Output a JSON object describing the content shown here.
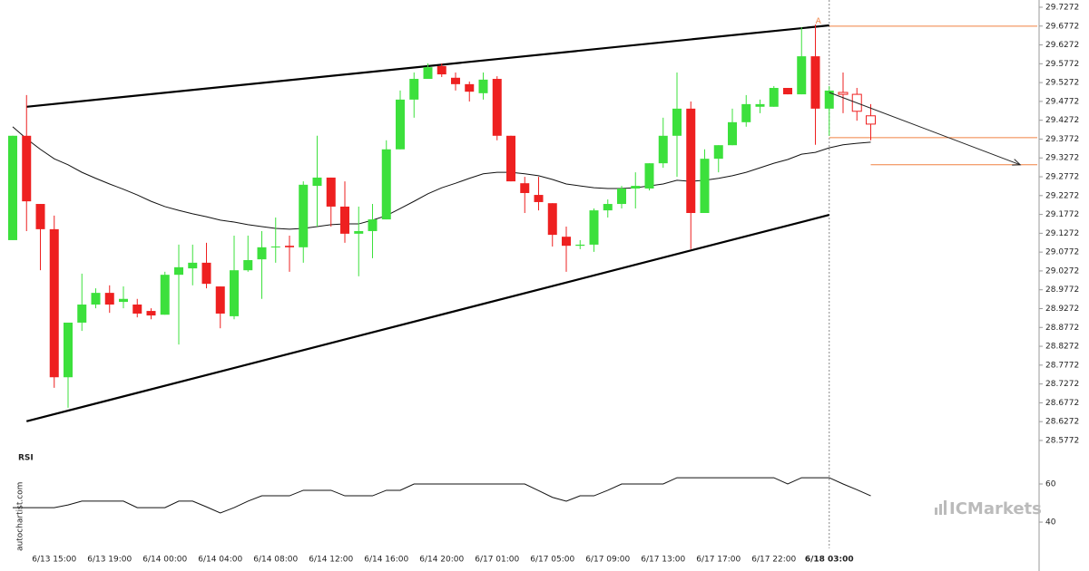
{
  "chart_data": {
    "type": "candlestick",
    "categories": [
      null,
      null,
      null,
      "6/13 15:00",
      null,
      null,
      null,
      "6/13 19:00",
      null,
      null,
      null,
      "6/14 00:00",
      null,
      null,
      null,
      "6/14 04:00",
      null,
      null,
      null,
      "6/14 08:00",
      null,
      null,
      null,
      "6/14 12:00",
      null,
      null,
      null,
      "6/14 16:00",
      null,
      null,
      null,
      "6/14 20:00",
      null,
      null,
      null,
      "6/17 01:00",
      null,
      null,
      null,
      "6/17 05:00",
      null,
      null,
      null,
      "6/17 09:00",
      null,
      null,
      null,
      "6/17 13:00",
      null,
      null,
      null,
      "6/17 17:00",
      null,
      null,
      null,
      "6/17 22:00",
      null,
      null,
      null,
      "6/18 03:00",
      null,
      null,
      null
    ],
    "open": [
      29.109,
      29.386,
      29.205,
      29.138,
      28.745,
      28.89,
      28.938,
      28.969,
      28.945,
      28.938,
      28.921,
      28.911,
      29.017,
      29.034,
      29.049,
      28.986,
      28.907,
      29.029,
      29.058,
      29.09,
      29.094,
      29.09,
      29.253,
      29.275,
      29.198,
      29.126,
      29.133,
      29.164,
      29.35,
      29.482,
      29.537,
      29.571,
      29.54,
      29.523,
      29.499,
      29.537,
      29.386,
      29.26,
      29.229,
      29.207,
      29.118,
      29.094,
      29.097,
      29.188,
      29.205,
      29.246,
      29.246,
      29.313,
      29.386,
      29.458,
      29.181,
      29.325,
      29.361,
      29.422,
      29.463,
      29.463,
      29.513,
      29.496,
      29.597,
      29.458,
      29.501,
      29.496,
      29.439
    ],
    "high": [
      29.386,
      29.494,
      29.205,
      29.174,
      28.89,
      29.02,
      28.981,
      28.989,
      28.986,
      28.953,
      28.928,
      29.025,
      29.097,
      29.097,
      29.102,
      28.986,
      29.121,
      29.121,
      29.133,
      29.169,
      29.121,
      29.265,
      29.386,
      29.275,
      29.265,
      29.198,
      29.205,
      29.374,
      29.506,
      29.554,
      29.578,
      29.578,
      29.554,
      29.53,
      29.554,
      29.544,
      29.386,
      29.277,
      29.277,
      29.207,
      29.145,
      29.109,
      29.193,
      29.217,
      29.253,
      29.289,
      29.313,
      29.434,
      29.554,
      29.477,
      29.35,
      29.361,
      29.458,
      29.494,
      29.482,
      29.518,
      29.513,
      29.674,
      29.681,
      29.518,
      29.554,
      29.513,
      29.47
    ],
    "low": [
      29.109,
      29.133,
      29.029,
      28.717,
      28.664,
      28.868,
      28.928,
      28.916,
      28.928,
      28.904,
      28.899,
      28.911,
      28.832,
      28.989,
      28.981,
      28.875,
      28.899,
      29.025,
      28.953,
      29.049,
      29.025,
      29.049,
      29.145,
      29.145,
      29.102,
      29.013,
      29.061,
      29.164,
      29.35,
      29.434,
      29.537,
      29.542,
      29.506,
      29.477,
      29.482,
      29.374,
      29.265,
      29.181,
      29.188,
      29.092,
      29.025,
      29.085,
      29.078,
      29.169,
      29.193,
      29.193,
      29.241,
      29.301,
      29.277,
      29.085,
      29.181,
      29.289,
      29.361,
      29.41,
      29.446,
      29.463,
      29.496,
      29.496,
      29.362,
      29.386,
      29.446,
      29.426,
      29.374
    ],
    "close": [
      29.386,
      29.212,
      29.138,
      28.745,
      28.89,
      28.938,
      28.969,
      28.938,
      28.953,
      28.914,
      28.909,
      29.017,
      29.037,
      29.049,
      28.993,
      28.914,
      29.029,
      29.056,
      29.09,
      29.092,
      29.09,
      29.256,
      29.275,
      29.198,
      29.126,
      29.133,
      29.164,
      29.35,
      29.482,
      29.537,
      29.568,
      29.549,
      29.523,
      29.503,
      29.535,
      29.386,
      29.265,
      29.234,
      29.21,
      29.123,
      29.094,
      29.097,
      29.188,
      29.205,
      29.246,
      29.253,
      29.313,
      29.386,
      29.458,
      29.181,
      29.325,
      29.361,
      29.422,
      29.47,
      29.47,
      29.513,
      29.496,
      29.597,
      29.458,
      29.506,
      29.496,
      29.451,
      29.417
    ],
    "ma": [
      29.41,
      29.378,
      29.35,
      29.325,
      29.309,
      29.289,
      29.273,
      29.258,
      29.244,
      29.229,
      29.212,
      29.198,
      29.188,
      29.179,
      29.171,
      29.162,
      29.157,
      29.15,
      29.145,
      29.14,
      29.138,
      29.14,
      29.145,
      29.15,
      29.152,
      29.152,
      29.162,
      29.174,
      29.193,
      29.212,
      29.232,
      29.248,
      29.26,
      29.273,
      29.285,
      29.289,
      29.289,
      29.285,
      29.28,
      29.27,
      29.258,
      29.253,
      29.248,
      29.246,
      29.246,
      29.248,
      29.253,
      29.258,
      29.268,
      29.265,
      29.268,
      29.273,
      29.28,
      29.289,
      29.301,
      29.313,
      29.323,
      29.337,
      29.342,
      29.354,
      29.362,
      29.366,
      29.369
    ],
    "up_color": "#3ce03c",
    "down_color": "#ee2020",
    "level_color": "#f08040",
    "breakout_index": 59,
    "ylim": [
      28.5627,
      29.7464
    ],
    "yticks": [
      29.7272,
      29.6772,
      29.6272,
      29.5772,
      29.5272,
      29.4772,
      29.4272,
      29.3772,
      29.3272,
      29.2772,
      29.2272,
      29.1772,
      29.1272,
      29.0772,
      29.0272,
      28.9772,
      28.9272,
      28.8772,
      28.8272,
      28.7772,
      28.7272,
      28.6772,
      28.6272,
      28.5772
    ],
    "trendlines": [
      {
        "x": [
          1,
          59
        ],
        "y": [
          29.463,
          29.679
        ]
      },
      {
        "x": [
          1,
          59
        ],
        "y": [
          28.628,
          29.176
        ]
      }
    ],
    "levels": [
      {
        "value": 29.677,
        "from": 59
      },
      {
        "value": 29.381,
        "from": 59
      },
      {
        "value": 29.309,
        "from": 62
      }
    ],
    "arrow": {
      "x": [
        59,
        72.8
      ],
      "y": [
        29.501,
        29.309
      ]
    },
    "annotation": {
      "text": "A",
      "x": 59,
      "y": 29.69
    },
    "rsi": {
      "label": "RSI",
      "values": [
        47.6,
        47.6,
        47.6,
        47.6,
        49,
        51,
        51,
        51,
        51,
        47.6,
        47.6,
        47.6,
        51,
        51,
        48,
        44.8,
        47.6,
        51,
        53.8,
        53.8,
        53.8,
        56.7,
        56.7,
        56.7,
        53.8,
        53.8,
        53.8,
        56.7,
        56.7,
        60,
        60,
        60,
        60,
        60,
        60,
        60,
        60,
        60,
        56.5,
        53,
        51,
        53.8,
        53.8,
        56.7,
        60,
        60,
        60,
        60,
        63.3,
        63.3,
        63.3,
        63.3,
        63.3,
        63.3,
        63.3,
        63.3,
        60,
        63.3,
        63.3,
        63.3,
        60,
        57,
        53.8
      ],
      "ylim": [
        22.9,
        77.6
      ],
      "yticks": [
        40,
        60
      ]
    },
    "watermark": "autochartist.com",
    "logo": "ICMarkets"
  }
}
